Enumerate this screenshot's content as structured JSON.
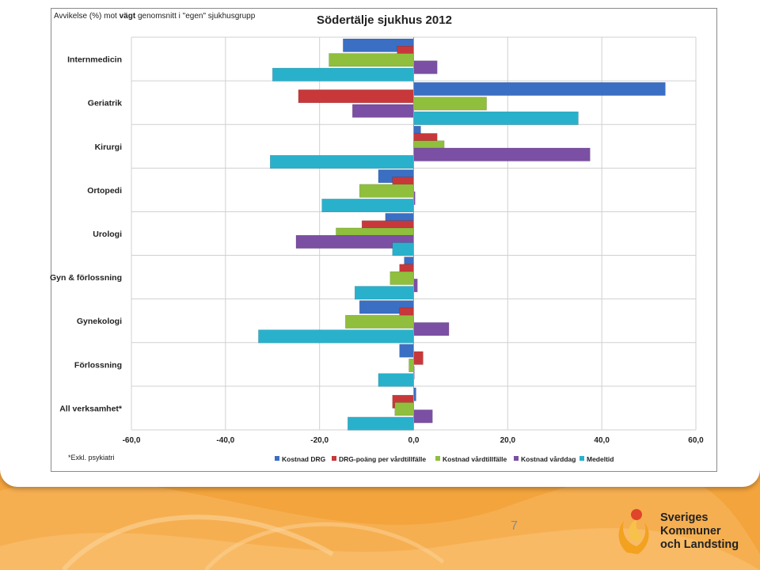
{
  "slide": {
    "page_number": "7"
  },
  "logo": {
    "line1": "Sveriges",
    "line2": "Kommuner",
    "line3": "och Landsting"
  },
  "colors": {
    "background_orange": "#f3a43c",
    "series_blue": "#3a6fc4",
    "series_red": "#c8383a",
    "series_green": "#8fbf3d",
    "series_purple": "#7b4fa3",
    "series_teal": "#29b1cc"
  },
  "chart_data": {
    "type": "bar",
    "orientation": "horizontal",
    "title": "Södertälje sjukhus 2012",
    "subtitle_prefix": "Avvikelse (%) mot ",
    "subtitle_bold": "vägt",
    "subtitle_suffix": " genomsnitt i \"egen\" sjukhusgrupp",
    "footnote": "*Exkl. psykiatri",
    "xlim": [
      -60,
      60
    ],
    "xticks": [
      -60,
      -40,
      -20,
      0,
      20,
      40,
      60
    ],
    "xtick_labels": [
      "-60,0",
      "-40,0",
      "-20,0",
      "0,0",
      "20,0",
      "40,0",
      "60,0"
    ],
    "grid": "vertical",
    "legend_position": "bottom",
    "categories": [
      "Internmedicin",
      "Geriatrik",
      "Kirurgi",
      "Ortopedi",
      "Urologi",
      "Gyn & förlossning",
      "Gynekologi",
      "Förlossning",
      "All verksamhet*"
    ],
    "series": [
      {
        "name": "Kostnad DRG",
        "color": "#3a6fc4",
        "values": [
          -15,
          53.5,
          1.5,
          -7.5,
          -6,
          -2,
          -11.5,
          -3,
          0.5
        ]
      },
      {
        "name": "DRG-poäng per vårdtillfälle",
        "color": "#c8383a",
        "values": [
          -3.5,
          -24.5,
          5,
          -4.5,
          -11,
          -3,
          -3,
          2,
          -4.5
        ]
      },
      {
        "name": "Kostnad vårdtillfälle",
        "color": "#8fbf3d",
        "values": [
          -18,
          15.5,
          6.5,
          -11.5,
          -16.5,
          -5,
          -14.5,
          -1,
          -4
        ]
      },
      {
        "name": "Kostnad vårddag",
        "color": "#7b4fa3",
        "values": [
          5,
          -13,
          37.5,
          0.3,
          -25,
          0.8,
          7.5,
          0,
          4
        ]
      },
      {
        "name": "Medeltid",
        "color": "#29b1cc",
        "values": [
          -30,
          35,
          -30.5,
          -19.5,
          -4.5,
          -12.5,
          -33,
          -7.5,
          -14
        ]
      }
    ]
  }
}
